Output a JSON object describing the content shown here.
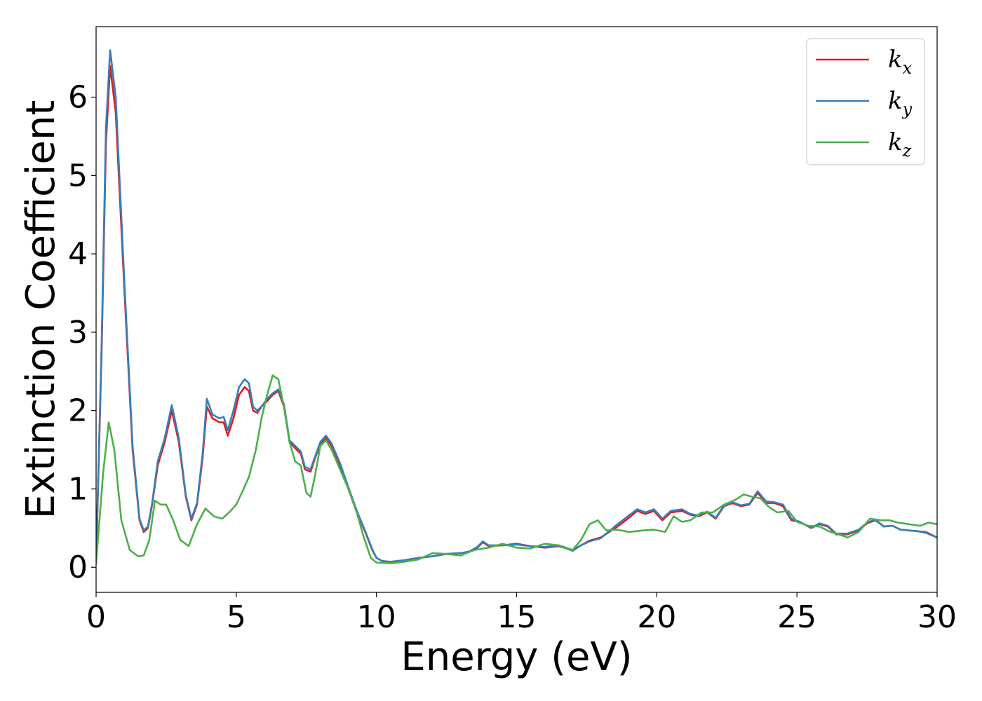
{
  "chart_data": {
    "type": "line",
    "title": "",
    "xlabel": "Energy (eV)",
    "ylabel": "Extinction Coefficient",
    "xlim": [
      0,
      30
    ],
    "ylim": [
      -0.32,
      6.9
    ],
    "xticks": [
      0,
      5,
      10,
      15,
      20,
      25,
      30
    ],
    "yticks": [
      0,
      1,
      2,
      3,
      4,
      5,
      6
    ],
    "grid": false,
    "legend_position": "top-right",
    "series": [
      {
        "name": "k_x",
        "label_main": "k",
        "label_sub": "x",
        "color": "#e41a1c",
        "x": [
          0,
          0.2,
          0.35,
          0.5,
          0.7,
          1.0,
          1.3,
          1.55,
          1.7,
          1.85,
          2.0,
          2.2,
          2.45,
          2.7,
          2.95,
          3.2,
          3.4,
          3.6,
          3.8,
          3.95,
          4.15,
          4.4,
          4.55,
          4.7,
          4.9,
          5.1,
          5.3,
          5.45,
          5.6,
          5.75,
          5.9,
          6.1,
          6.3,
          6.5,
          6.7,
          6.9,
          7.1,
          7.3,
          7.45,
          7.65,
          7.8,
          8.0,
          8.2,
          8.4,
          8.7,
          9.0,
          9.3,
          9.6,
          9.85,
          10.0,
          10.2,
          10.5,
          11.0,
          11.5,
          12.0,
          12.5,
          13.0,
          13.3,
          13.6,
          13.8,
          14.0,
          14.5,
          15.0,
          15.5,
          16.0,
          16.5,
          17.0,
          17.3,
          17.6,
          18.0,
          18.3,
          18.6,
          19.0,
          19.3,
          19.6,
          19.9,
          20.2,
          20.5,
          20.9,
          21.2,
          21.5,
          21.8,
          22.1,
          22.4,
          22.7,
          23.0,
          23.3,
          23.6,
          23.9,
          24.2,
          24.5,
          24.8,
          25.1,
          25.5,
          25.8,
          26.1,
          26.4,
          26.8,
          27.2,
          27.5,
          27.8,
          28.1,
          28.4,
          28.7,
          29.0,
          29.3,
          29.6,
          30.0
        ],
        "values": [
          0.05,
          2.8,
          5.4,
          6.4,
          5.8,
          3.6,
          1.5,
          0.6,
          0.45,
          0.5,
          0.8,
          1.3,
          1.6,
          2.0,
          1.6,
          0.9,
          0.6,
          0.8,
          1.4,
          2.05,
          1.9,
          1.85,
          1.85,
          1.68,
          1.9,
          2.2,
          2.3,
          2.25,
          2.0,
          1.97,
          2.05,
          2.12,
          2.2,
          2.25,
          2.05,
          1.6,
          1.52,
          1.45,
          1.25,
          1.22,
          1.38,
          1.58,
          1.65,
          1.55,
          1.3,
          1.0,
          0.7,
          0.45,
          0.22,
          0.12,
          0.08,
          0.07,
          0.09,
          0.12,
          0.14,
          0.17,
          0.18,
          0.2,
          0.25,
          0.32,
          0.27,
          0.28,
          0.3,
          0.27,
          0.25,
          0.27,
          0.22,
          0.28,
          0.34,
          0.38,
          0.45,
          0.52,
          0.63,
          0.72,
          0.68,
          0.72,
          0.6,
          0.7,
          0.72,
          0.67,
          0.65,
          0.7,
          0.62,
          0.78,
          0.82,
          0.78,
          0.8,
          0.95,
          0.82,
          0.82,
          0.78,
          0.6,
          0.58,
          0.5,
          0.55,
          0.52,
          0.42,
          0.42,
          0.47,
          0.56,
          0.6,
          0.52,
          0.53,
          0.48,
          0.47,
          0.46,
          0.45,
          0.38
        ]
      },
      {
        "name": "k_y",
        "label_main": "k",
        "label_sub": "y",
        "color": "#377eb8",
        "x": [
          0,
          0.2,
          0.35,
          0.5,
          0.7,
          1.0,
          1.3,
          1.55,
          1.7,
          1.85,
          2.0,
          2.2,
          2.45,
          2.7,
          2.95,
          3.2,
          3.4,
          3.6,
          3.8,
          3.95,
          4.15,
          4.4,
          4.55,
          4.7,
          4.9,
          5.1,
          5.3,
          5.45,
          5.6,
          5.75,
          5.9,
          6.1,
          6.3,
          6.5,
          6.7,
          6.9,
          7.1,
          7.3,
          7.45,
          7.65,
          7.8,
          8.0,
          8.2,
          8.4,
          8.7,
          9.0,
          9.3,
          9.6,
          9.85,
          10.0,
          10.2,
          10.5,
          11.0,
          11.5,
          12.0,
          12.5,
          13.0,
          13.3,
          13.6,
          13.8,
          14.0,
          14.5,
          15.0,
          15.5,
          16.0,
          16.5,
          17.0,
          17.3,
          17.6,
          18.0,
          18.3,
          18.6,
          19.0,
          19.3,
          19.6,
          19.9,
          20.2,
          20.5,
          20.9,
          21.2,
          21.5,
          21.8,
          22.1,
          22.4,
          22.7,
          23.0,
          23.3,
          23.6,
          23.9,
          24.2,
          24.5,
          24.8,
          25.1,
          25.5,
          25.8,
          26.1,
          26.4,
          26.8,
          27.2,
          27.5,
          27.8,
          28.1,
          28.4,
          28.7,
          29.0,
          29.3,
          29.6,
          30.0
        ],
        "values": [
          0.05,
          2.9,
          5.6,
          6.6,
          6.0,
          3.7,
          1.55,
          0.62,
          0.47,
          0.52,
          0.82,
          1.35,
          1.65,
          2.07,
          1.65,
          0.92,
          0.62,
          0.82,
          1.45,
          2.15,
          1.95,
          1.9,
          1.92,
          1.75,
          2.0,
          2.3,
          2.4,
          2.35,
          2.05,
          2.0,
          2.05,
          2.15,
          2.22,
          2.27,
          2.08,
          1.62,
          1.55,
          1.48,
          1.28,
          1.25,
          1.4,
          1.6,
          1.68,
          1.58,
          1.33,
          1.02,
          0.72,
          0.46,
          0.23,
          0.12,
          0.08,
          0.07,
          0.09,
          0.12,
          0.14,
          0.17,
          0.18,
          0.2,
          0.26,
          0.33,
          0.28,
          0.28,
          0.29,
          0.27,
          0.26,
          0.28,
          0.21,
          0.28,
          0.33,
          0.37,
          0.46,
          0.55,
          0.66,
          0.74,
          0.7,
          0.74,
          0.62,
          0.72,
          0.74,
          0.68,
          0.66,
          0.71,
          0.63,
          0.79,
          0.83,
          0.79,
          0.81,
          0.97,
          0.84,
          0.83,
          0.8,
          0.62,
          0.58,
          0.5,
          0.56,
          0.53,
          0.43,
          0.43,
          0.48,
          0.57,
          0.61,
          0.52,
          0.53,
          0.48,
          0.47,
          0.46,
          0.44,
          0.38
        ]
      },
      {
        "name": "k_z",
        "label_main": "k",
        "label_sub": "z",
        "color": "#4daf4a",
        "x": [
          0,
          0.25,
          0.45,
          0.65,
          0.9,
          1.2,
          1.5,
          1.7,
          1.9,
          2.1,
          2.3,
          2.5,
          2.75,
          3.0,
          3.3,
          3.6,
          3.9,
          4.2,
          4.5,
          4.8,
          5.0,
          5.2,
          5.45,
          5.7,
          5.9,
          6.1,
          6.3,
          6.5,
          6.7,
          6.9,
          7.1,
          7.3,
          7.5,
          7.65,
          7.8,
          8.0,
          8.2,
          8.4,
          8.7,
          9.0,
          9.3,
          9.55,
          9.8,
          10.0,
          10.5,
          11.0,
          11.5,
          12.0,
          12.5,
          13.0,
          13.5,
          14.0,
          14.5,
          15.0,
          15.5,
          16.0,
          16.5,
          17.0,
          17.3,
          17.6,
          17.9,
          18.2,
          18.6,
          19.0,
          19.5,
          19.9,
          20.3,
          20.6,
          20.9,
          21.2,
          21.6,
          22.0,
          22.4,
          22.8,
          23.1,
          23.4,
          23.7,
          24.0,
          24.3,
          24.7,
          25.0,
          25.4,
          25.8,
          26.2,
          26.5,
          26.8,
          27.2,
          27.6,
          28.0,
          28.3,
          28.6,
          29.0,
          29.4,
          29.7,
          30.0
        ],
        "values": [
          0.05,
          1.2,
          1.85,
          1.5,
          0.6,
          0.22,
          0.14,
          0.15,
          0.35,
          0.85,
          0.8,
          0.8,
          0.6,
          0.35,
          0.27,
          0.55,
          0.75,
          0.65,
          0.62,
          0.72,
          0.8,
          0.95,
          1.15,
          1.5,
          1.9,
          2.2,
          2.45,
          2.4,
          2.05,
          1.6,
          1.35,
          1.3,
          0.95,
          0.9,
          1.15,
          1.55,
          1.62,
          1.5,
          1.25,
          1.0,
          0.7,
          0.38,
          0.12,
          0.06,
          0.05,
          0.07,
          0.1,
          0.18,
          0.17,
          0.15,
          0.22,
          0.25,
          0.3,
          0.25,
          0.24,
          0.3,
          0.28,
          0.22,
          0.35,
          0.55,
          0.6,
          0.47,
          0.48,
          0.45,
          0.47,
          0.48,
          0.45,
          0.65,
          0.58,
          0.6,
          0.7,
          0.7,
          0.8,
          0.86,
          0.93,
          0.9,
          0.88,
          0.77,
          0.7,
          0.72,
          0.58,
          0.53,
          0.52,
          0.45,
          0.42,
          0.38,
          0.45,
          0.62,
          0.6,
          0.6,
          0.57,
          0.55,
          0.53,
          0.57,
          0.55
        ]
      }
    ]
  }
}
